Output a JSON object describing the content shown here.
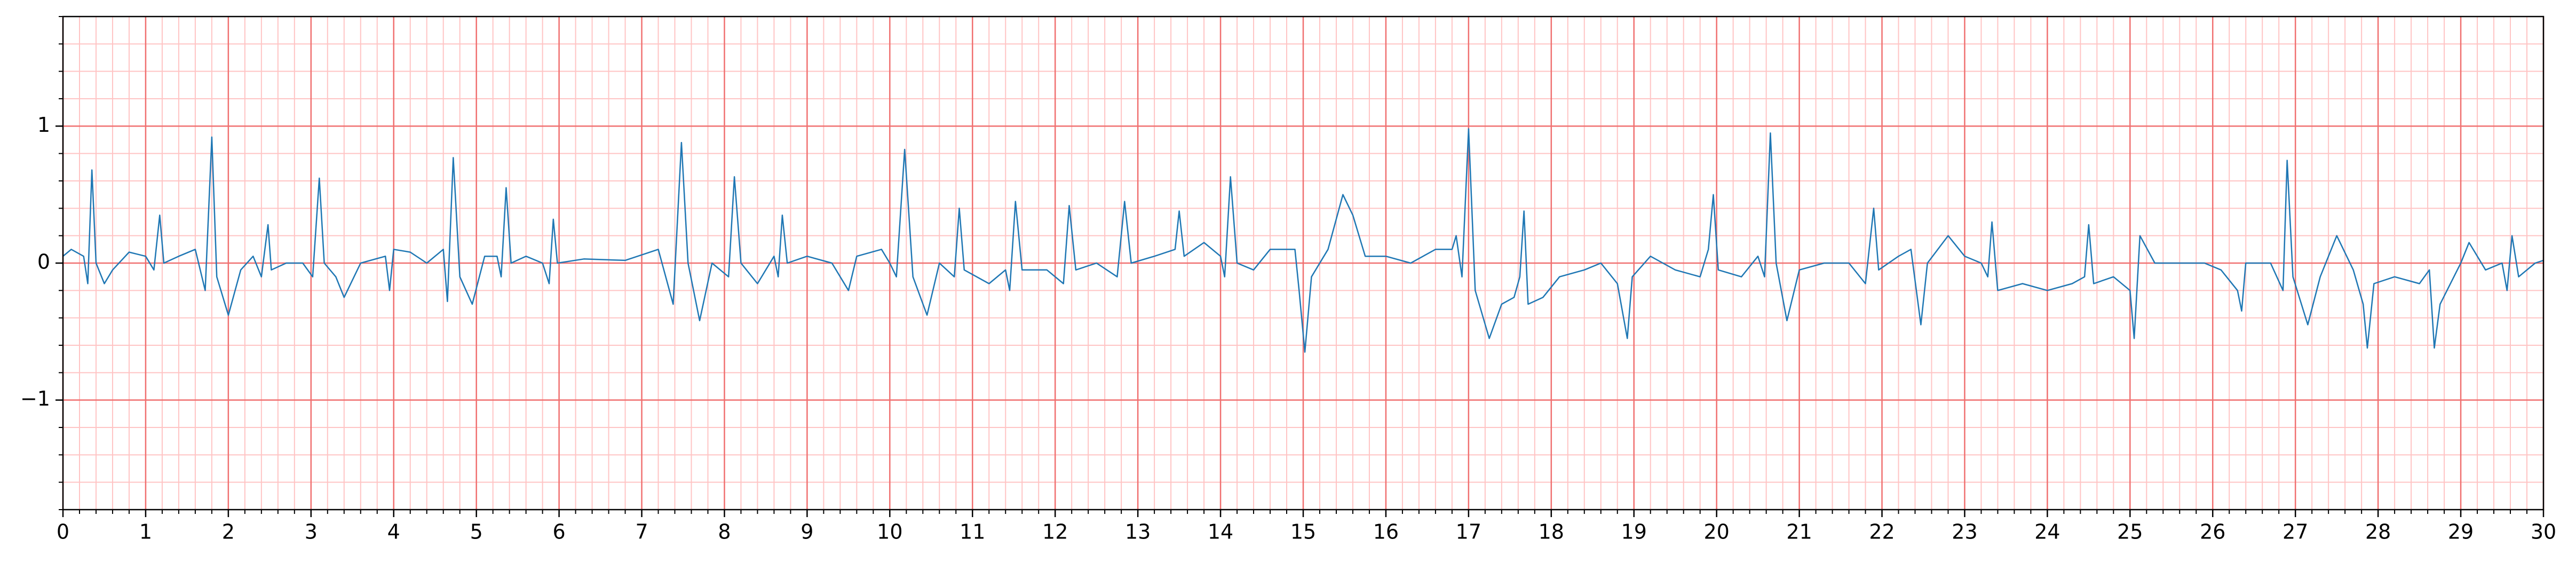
{
  "chart_data": {
    "type": "line",
    "xlim": [
      0,
      30
    ],
    "ylim": [
      -1.8,
      1.8
    ],
    "xticks": [
      0,
      1,
      2,
      3,
      4,
      5,
      6,
      7,
      8,
      9,
      10,
      11,
      12,
      13,
      14,
      15,
      16,
      17,
      18,
      19,
      20,
      21,
      22,
      23,
      24,
      25,
      26,
      27,
      28,
      29,
      30
    ],
    "yticks": [
      {
        "value": -1,
        "label": "−1"
      },
      0,
      1
    ],
    "grid": true,
    "major_grid_color": "#f07070",
    "minor_grid_color": "#ffc4c4",
    "minor_step_x": 0.2,
    "minor_step_y": 0.2,
    "series": [
      {
        "color": "#1f77b4",
        "x": [
          0,
          0.1,
          0.25,
          0.3,
          0.35,
          0.4,
          0.5,
          0.6,
          0.8,
          1.0,
          1.1,
          1.17,
          1.22,
          1.4,
          1.6,
          1.72,
          1.8,
          1.86,
          2.0,
          2.15,
          2.3,
          2.4,
          2.48,
          2.52,
          2.7,
          2.9,
          3.02,
          3.1,
          3.16,
          3.3,
          3.4,
          3.6,
          3.9,
          3.95,
          4.0,
          4.2,
          4.4,
          4.6,
          4.65,
          4.72,
          4.8,
          4.95,
          5.1,
          5.25,
          5.3,
          5.36,
          5.42,
          5.6,
          5.8,
          5.88,
          5.93,
          5.98,
          6.3,
          6.8,
          7.2,
          7.38,
          7.48,
          7.56,
          7.7,
          7.85,
          8.05,
          8.12,
          8.2,
          8.4,
          8.6,
          8.65,
          8.7,
          8.76,
          9.0,
          9.3,
          9.5,
          9.6,
          9.9,
          10.0,
          10.08,
          10.18,
          10.28,
          10.45,
          10.6,
          10.78,
          10.84,
          10.9,
          11.2,
          11.4,
          11.45,
          11.52,
          11.6,
          11.9,
          12.1,
          12.17,
          12.25,
          12.5,
          12.75,
          12.84,
          12.92,
          13.2,
          13.45,
          13.5,
          13.56,
          13.8,
          14.0,
          14.05,
          14.12,
          14.2,
          14.4,
          14.6,
          14.9,
          14.95,
          15.02,
          15.1,
          15.3,
          15.48,
          15.6,
          15.75,
          16.0,
          16.3,
          16.6,
          16.8,
          16.85,
          16.92,
          17.0,
          17.08,
          17.25,
          17.4,
          17.55,
          17.62,
          17.67,
          17.72,
          17.9,
          18.1,
          18.4,
          18.6,
          18.8,
          18.92,
          18.98,
          19.2,
          19.5,
          19.8,
          19.9,
          19.96,
          20.02,
          20.3,
          20.5,
          20.58,
          20.65,
          20.72,
          20.85,
          21.0,
          21.3,
          21.6,
          21.8,
          21.9,
          21.96,
          22.2,
          22.35,
          22.47,
          22.55,
          22.8,
          23.0,
          23.2,
          23.28,
          23.33,
          23.4,
          23.7,
          24.0,
          24.3,
          24.45,
          24.5,
          24.56,
          24.8,
          25.0,
          25.05,
          25.12,
          25.3,
          25.6,
          25.9,
          26.1,
          26.3,
          26.35,
          26.4,
          26.7,
          26.85,
          26.9,
          26.97,
          27.15,
          27.3,
          27.5,
          27.7,
          27.82,
          27.87,
          27.95,
          28.2,
          28.5,
          28.62,
          28.68,
          28.75,
          29.0,
          29.1,
          29.3,
          29.5,
          29.56,
          29.62,
          29.7,
          29.9,
          30
        ],
        "values": [
          0.05,
          0.1,
          0.05,
          -0.15,
          0.68,
          0.0,
          -0.15,
          -0.05,
          0.08,
          0.05,
          -0.05,
          0.35,
          0.0,
          0.05,
          0.1,
          -0.2,
          0.92,
          -0.1,
          -0.38,
          -0.05,
          0.05,
          -0.1,
          0.28,
          -0.05,
          0.0,
          0.0,
          -0.1,
          0.62,
          0.0,
          -0.1,
          -0.25,
          0.0,
          0.05,
          -0.2,
          0.1,
          0.08,
          0.0,
          0.1,
          -0.28,
          0.77,
          -0.1,
          -0.3,
          0.05,
          0.05,
          -0.1,
          0.55,
          0.0,
          0.05,
          0.0,
          -0.15,
          0.32,
          0.0,
          0.03,
          0.02,
          0.1,
          -0.3,
          0.88,
          0.0,
          -0.42,
          0.0,
          -0.1,
          0.63,
          0.0,
          -0.15,
          0.05,
          -0.1,
          0.35,
          0.0,
          0.05,
          0.0,
          -0.2,
          0.05,
          0.1,
          0.0,
          -0.1,
          0.83,
          -0.1,
          -0.38,
          0.0,
          -0.1,
          0.4,
          -0.05,
          -0.15,
          -0.05,
          -0.2,
          0.45,
          -0.05,
          -0.05,
          -0.15,
          0.42,
          -0.05,
          0.0,
          -0.1,
          0.45,
          0.0,
          0.05,
          0.1,
          0.38,
          0.05,
          0.15,
          0.05,
          -0.1,
          0.63,
          0.0,
          -0.05,
          0.1,
          0.1,
          -0.2,
          -0.65,
          -0.1,
          0.1,
          0.5,
          0.35,
          0.05,
          0.05,
          0.0,
          0.1,
          0.1,
          0.2,
          -0.1,
          0.98,
          -0.2,
          -0.55,
          -0.3,
          -0.25,
          -0.1,
          0.38,
          -0.3,
          -0.25,
          -0.1,
          -0.05,
          0.0,
          -0.15,
          -0.55,
          -0.1,
          0.05,
          -0.05,
          -0.1,
          0.1,
          0.5,
          -0.05,
          -0.1,
          0.05,
          -0.1,
          0.95,
          0.0,
          -0.42,
          -0.05,
          0.0,
          0.0,
          -0.15,
          0.4,
          -0.05,
          0.05,
          0.1,
          -0.45,
          0.0,
          0.2,
          0.05,
          0.0,
          -0.1,
          0.3,
          -0.2,
          -0.15,
          -0.2,
          -0.15,
          -0.1,
          0.28,
          -0.15,
          -0.1,
          -0.2,
          -0.55,
          0.2,
          0.0,
          0.0,
          0.0,
          -0.05,
          -0.2,
          -0.35,
          0.0,
          0.0,
          -0.2,
          0.75,
          -0.1,
          -0.45,
          -0.1,
          0.2,
          -0.05,
          -0.3,
          -0.62,
          -0.15,
          -0.1,
          -0.15,
          -0.05,
          -0.62,
          -0.3,
          0.0,
          0.15,
          -0.05,
          0.0,
          -0.2,
          0.2,
          -0.1,
          0.0,
          0.02
        ]
      }
    ]
  }
}
